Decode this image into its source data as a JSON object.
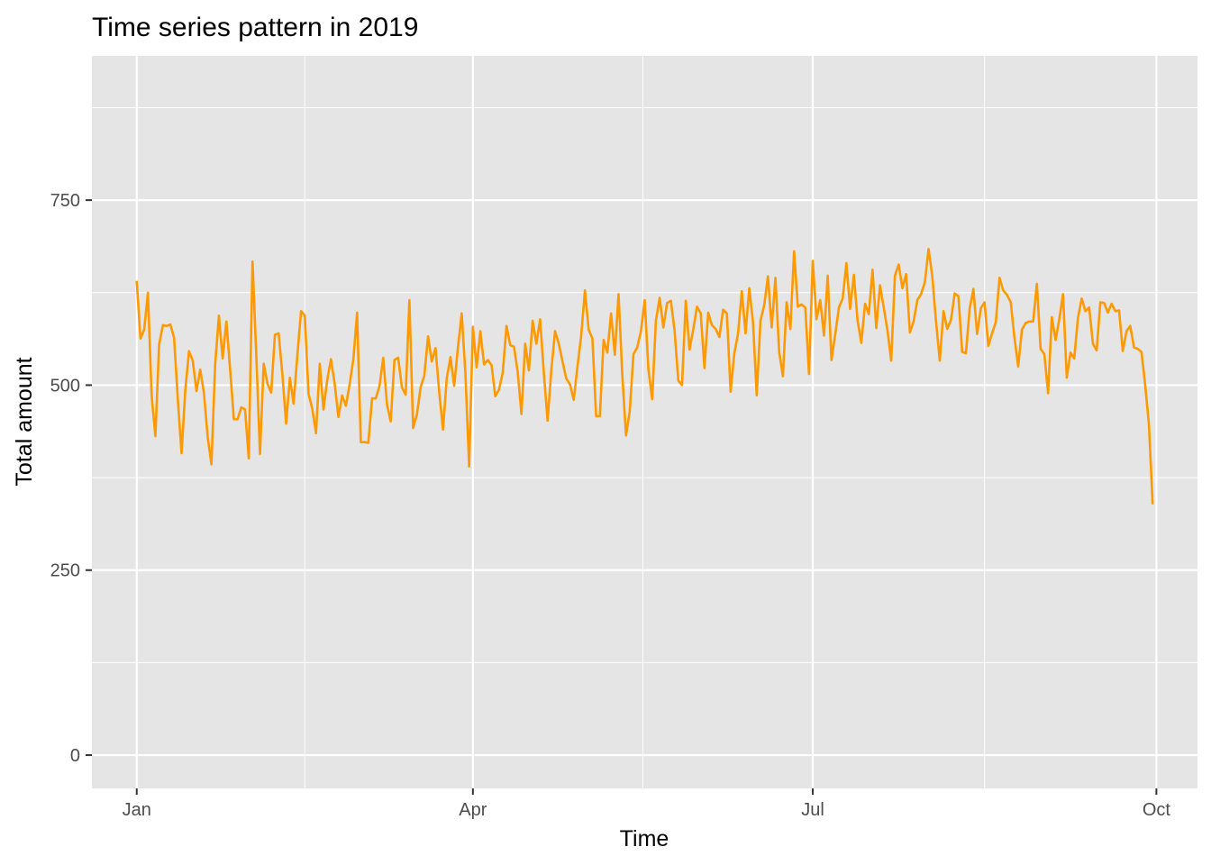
{
  "chart_data": {
    "type": "line",
    "title": "Time series pattern in 2019",
    "xlabel": "Time",
    "ylabel": "Total amount",
    "x_tick_labels": [
      "Jan",
      "Apr",
      "Jul",
      "Oct"
    ],
    "x_tick_dates": [
      "2019-01-01",
      "2019-04-01",
      "2019-07-01",
      "2019-10-01"
    ],
    "y_ticks": [
      0,
      250,
      500,
      750
    ],
    "xlim": [
      "2018-12-20",
      "2019-10-12"
    ],
    "ylim": [
      -45,
      945
    ],
    "grid": true,
    "series": [
      {
        "color": "#ff9900",
        "x_start": "2019-01-01",
        "x_step_days": 1,
        "values": [
          641,
          563,
          575,
          625,
          485,
          431,
          555,
          581,
          580,
          582,
          564,
          481,
          408,
          493,
          546,
          533,
          492,
          521,
          489,
          430,
          393,
          528,
          594,
          536,
          586,
          522,
          454,
          454,
          470,
          467,
          401,
          667,
          542,
          407,
          529,
          502,
          490,
          568,
          570,
          514,
          448,
          510,
          475,
          540,
          600,
          594,
          488,
          468,
          435,
          529,
          467,
          507,
          535,
          502,
          457,
          486,
          472,
          501,
          535,
          598,
          423,
          423,
          422,
          482,
          482,
          499,
          537,
          474,
          451,
          534,
          537,
          497,
          487,
          615,
          442,
          460,
          497,
          513,
          566,
          532,
          550,
          490,
          440,
          509,
          538,
          499,
          551,
          597,
          516,
          390,
          579,
          524,
          573,
          528,
          534,
          527,
          485,
          494,
          517,
          580,
          554,
          552,
          518,
          461,
          556,
          520,
          587,
          556,
          589,
          516,
          452,
          520,
          573,
          556,
          532,
          509,
          501,
          480,
          525,
          567,
          628,
          575,
          563,
          458,
          458,
          561,
          544,
          597,
          541,
          623,
          514,
          432,
          465,
          542,
          551,
          573,
          615,
          521,
          481,
          587,
          618,
          578,
          611,
          614,
          574,
          506,
          500,
          614,
          548,
          575,
          606,
          597,
          523,
          598,
          581,
          576,
          565,
          602,
          597,
          491,
          543,
          570,
          627,
          570,
          631,
          585,
          486,
          587,
          608,
          647,
          578,
          645,
          545,
          512,
          612,
          576,
          681,
          606,
          609,
          605,
          515,
          668,
          589,
          615,
          567,
          648,
          534,
          568,
          605,
          617,
          665,
          603,
          649,
          587,
          557,
          610,
          596,
          656,
          577,
          635,
          605,
          574,
          533,
          648,
          663,
          631,
          650,
          571,
          586,
          615,
          623,
          639,
          684,
          647,
          586,
          533,
          600,
          576,
          588,
          624,
          620,
          545,
          543,
          603,
          630,
          569,
          604,
          612,
          553,
          570,
          585,
          645,
          628,
          622,
          612,
          564,
          525,
          575,
          584,
          586,
          586,
          637,
          549,
          542,
          489,
          592,
          561,
          589,
          623,
          510,
          544,
          536,
          591,
          617,
          600,
          605,
          556,
          547,
          612,
          611,
          598,
          610,
          600,
          601,
          546,
          573,
          580,
          551,
          549,
          545,
          500,
          447,
          339
        ]
      }
    ]
  }
}
